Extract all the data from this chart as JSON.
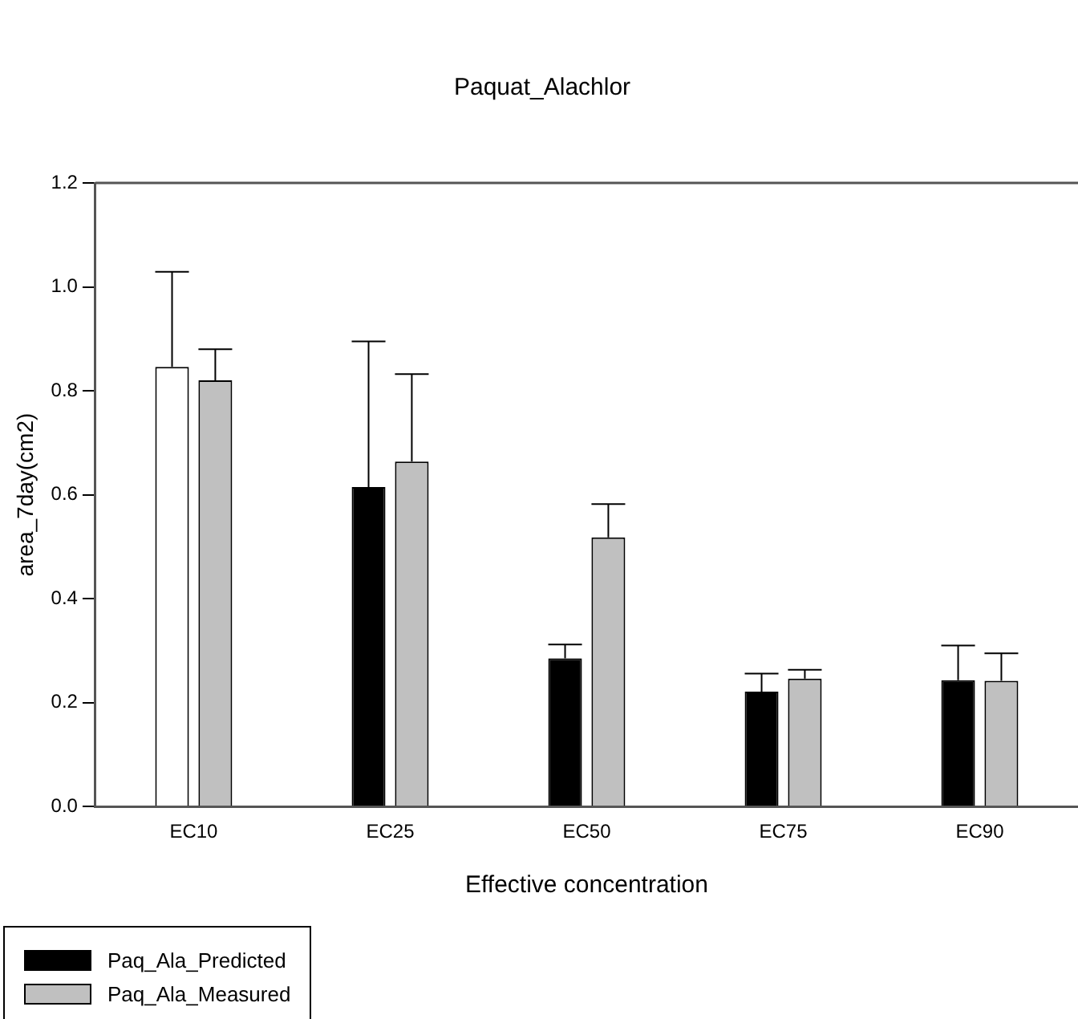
{
  "chart_data": {
    "type": "bar",
    "title": "Paquat_Alachlor",
    "xlabel": "Effective concentration",
    "ylabel": "area_7day(cm2)",
    "categories": [
      "EC10",
      "EC25",
      "EC50",
      "EC75",
      "EC90"
    ],
    "series": [
      {
        "name": "Paq_Ala_Predicted",
        "color": "#000000",
        "colors": [
          "#ffffff",
          "#000000",
          "#000000",
          "#000000",
          "#000000"
        ],
        "values": [
          0.846,
          0.615,
          0.285,
          0.221,
          0.243
        ],
        "errors": [
          [
            0.846,
            1.029
          ],
          [
            0.615,
            0.895
          ],
          [
            0.285,
            0.312
          ],
          [
            0.221,
            0.256
          ],
          [
            0.243,
            0.31
          ]
        ]
      },
      {
        "name": "Paq_Ala_Measured",
        "color": "#c0c0c0",
        "values": [
          0.82,
          0.664,
          0.518,
          0.246,
          0.242
        ],
        "errors": [
          [
            0.82,
            0.88
          ],
          [
            0.664,
            0.832
          ],
          [
            0.518,
            0.582
          ],
          [
            0.246,
            0.263
          ],
          [
            0.242,
            0.295
          ]
        ]
      }
    ],
    "ylim": [
      0,
      1.2
    ],
    "yticks": [
      {
        "value": 0,
        "label": "0.0"
      },
      0.2,
      0.4,
      0.6,
      0.8,
      {
        "value": 1,
        "label": "1.0"
      },
      1.2
    ],
    "grid": false,
    "legend": "bottom left"
  }
}
